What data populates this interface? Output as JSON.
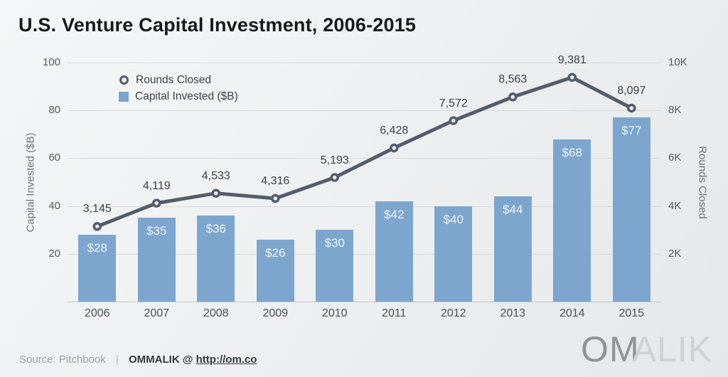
{
  "title": "U.S. Venture Capital Investment, 2006-2015",
  "footer": {
    "source": "Source: Pitchbook",
    "separator": "|",
    "credit": "OMMALIK",
    "at": "@",
    "url": "http://om.co"
  },
  "logo": {
    "dark": "OM",
    "light": "ALIK"
  },
  "colors": {
    "bar": "#7da6ce",
    "line": "#535c6a",
    "marker_fill": "#e9ebed",
    "grid": "#d8dadd",
    "axis": "#c2c5c9",
    "bar_label": "#eef3f7",
    "point_label": "#3c4249"
  },
  "chart_data": {
    "type": "bar+line",
    "title": "U.S. Venture Capital Investment, 2006-2015",
    "categories": [
      "2006",
      "2007",
      "2008",
      "2009",
      "2010",
      "2011",
      "2012",
      "2013",
      "2014",
      "2015"
    ],
    "series": [
      {
        "name": "Capital Invested ($B)",
        "type": "bar",
        "axis": "left",
        "values": [
          28,
          35,
          36,
          26,
          30,
          42,
          40,
          44,
          68,
          77
        ],
        "labels": [
          "$28",
          "$35",
          "$36",
          "$26",
          "$30",
          "$42",
          "$40",
          "$44",
          "$68",
          "$77"
        ]
      },
      {
        "name": "Rounds Closed",
        "type": "line",
        "axis": "right",
        "values": [
          3145,
          4119,
          4533,
          4316,
          5193,
          6428,
          7572,
          8563,
          9381,
          8097
        ],
        "labels": [
          "3,145",
          "4,119",
          "4,533",
          "4,316",
          "5,193",
          "6,428",
          "7,572",
          "8,563",
          "9,381",
          "8,097"
        ]
      }
    ],
    "ylabel_left": "Capital Invested ($B)",
    "ylabel_right": "Rounds Closed",
    "ylim_left": [
      0,
      100
    ],
    "ylim_right": [
      0,
      10000
    ],
    "yticks_left": [
      20,
      40,
      60,
      80,
      100
    ],
    "ytick_labels_left": [
      "20",
      "40",
      "60",
      "80",
      "100"
    ],
    "ytick_labels_right": [
      "2K",
      "4K",
      "6K",
      "8K",
      "10K"
    ],
    "grid": true,
    "legend_position": "top-left"
  }
}
